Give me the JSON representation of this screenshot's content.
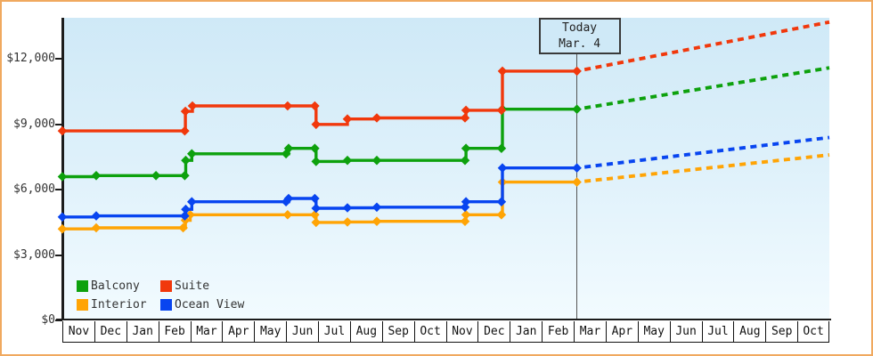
{
  "style": {
    "frame_border": "#f0a95f",
    "plot_bg_top": "#cfe9f7",
    "plot_bg_bottom": "#f2fbff",
    "axis_color": "#1c1c1c",
    "text_color": "#333333",
    "month_text_color": "#111111",
    "today_line_color": "#555555",
    "today_box_bg": "#cfe9f7",
    "today_box_border": "#3a3a3a"
  },
  "chart_data": {
    "type": "line",
    "subtype": "step-price-history-with-projection",
    "currency": "USD",
    "x_axis": {
      "month_labels": [
        "Nov",
        "Dec",
        "Jan",
        "Feb",
        "Mar",
        "Apr",
        "May",
        "Jun",
        "Jul",
        "Aug",
        "Sep",
        "Oct",
        "Nov",
        "Dec",
        "Jan",
        "Feb",
        "Mar",
        "Apr",
        "May",
        "Jun",
        "Jul",
        "Aug",
        "Sep",
        "Oct"
      ]
    },
    "y_axis": {
      "tick_labels": [
        "$0",
        "$3,000",
        "$6,000",
        "$9,000",
        "$12,000"
      ],
      "tick_values": [
        0,
        3000,
        6000,
        9000,
        12000
      ],
      "min": 0,
      "max": 14300,
      "gridlines": false
    },
    "today": {
      "title": "Today",
      "date": "Mar. 4",
      "month_offset": 16.1
    },
    "legend": {
      "position": "bottom-left",
      "items": [
        {
          "label": "Balcony",
          "color": "#0da10d"
        },
        {
          "label": "Suite",
          "color": "#f1380c"
        },
        {
          "label": "Interior",
          "color": "#ffa405"
        },
        {
          "label": "Ocean View",
          "color": "#0845f0"
        }
      ]
    },
    "series": [
      {
        "name": "Balcony",
        "color": "#0da10d",
        "points": [
          [
            0,
            6600
          ],
          [
            1.06,
            6650
          ],
          [
            2.93,
            6650
          ],
          [
            3.83,
            6650
          ],
          [
            3.86,
            7350
          ],
          [
            4.05,
            7650
          ],
          [
            7.0,
            7650
          ],
          [
            7.08,
            7900
          ],
          [
            7.9,
            7900
          ],
          [
            7.94,
            7300
          ],
          [
            8.92,
            7350
          ],
          [
            9.84,
            7350
          ],
          [
            12.6,
            7350
          ],
          [
            12.63,
            7900
          ],
          [
            13.74,
            7900
          ],
          [
            13.77,
            9700
          ],
          [
            16.1,
            9700
          ]
        ],
        "projection": {
          "month": 24,
          "value": 11600
        }
      },
      {
        "name": "Suite",
        "color": "#f1380c",
        "points": [
          [
            0,
            8700
          ],
          [
            3.83,
            8700
          ],
          [
            3.85,
            9600
          ],
          [
            4.07,
            9850
          ],
          [
            7.05,
            9850
          ],
          [
            7.9,
            9850
          ],
          [
            7.94,
            9000
          ],
          [
            8.92,
            9250
          ],
          [
            9.84,
            9300
          ],
          [
            12.6,
            9300
          ],
          [
            12.63,
            9650
          ],
          [
            13.74,
            9650
          ],
          [
            13.77,
            11450
          ],
          [
            16.1,
            11450
          ]
        ],
        "projection": {
          "month": 24,
          "value": 13700
        }
      },
      {
        "name": "Interior",
        "color": "#ffa405",
        "points": [
          [
            0,
            4200
          ],
          [
            1.06,
            4250
          ],
          [
            3.78,
            4250
          ],
          [
            3.85,
            4600
          ],
          [
            4.0,
            4850
          ],
          [
            7.05,
            4850
          ],
          [
            7.9,
            4850
          ],
          [
            7.94,
            4500
          ],
          [
            8.92,
            4520
          ],
          [
            9.84,
            4550
          ],
          [
            12.6,
            4550
          ],
          [
            12.63,
            4850
          ],
          [
            13.74,
            4850
          ],
          [
            13.77,
            6350
          ],
          [
            16.1,
            6350
          ]
        ],
        "projection": {
          "month": 24,
          "value": 7600
        }
      },
      {
        "name": "Ocean View",
        "color": "#0845f0",
        "points": [
          [
            0,
            4750
          ],
          [
            1.06,
            4800
          ],
          [
            3.83,
            4800
          ],
          [
            3.86,
            5100
          ],
          [
            4.05,
            5450
          ],
          [
            7.0,
            5450
          ],
          [
            7.08,
            5600
          ],
          [
            7.9,
            5600
          ],
          [
            7.94,
            5150
          ],
          [
            8.92,
            5170
          ],
          [
            9.84,
            5200
          ],
          [
            12.6,
            5200
          ],
          [
            12.63,
            5450
          ],
          [
            13.74,
            5450
          ],
          [
            13.77,
            7000
          ],
          [
            16.1,
            7000
          ]
        ],
        "projection": {
          "month": 24,
          "value": 8400
        }
      }
    ]
  }
}
